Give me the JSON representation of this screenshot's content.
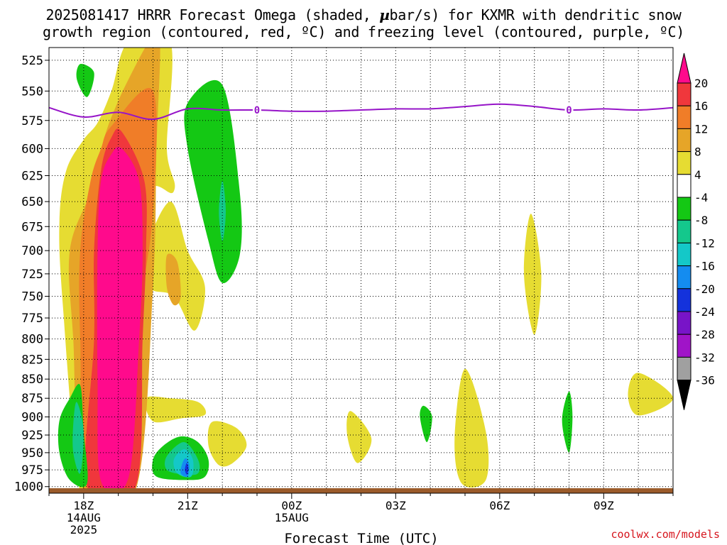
{
  "title": {
    "line1_prefix": "2025081417 HRRR Forecast Omega (shaded, ",
    "line1_mu": "µ",
    "line1_suffix": "bar/s) for KXMR with dendritic snow",
    "line2": "growth region (contoured, red, ºC) and freezing level (contoured, purple, ºC)"
  },
  "credit": "coolwx.com/models",
  "chart_data": {
    "type": "heatmap",
    "xlabel": "Forecast Time (UTC)",
    "ylabel": "",
    "x_range_hours_after_18Z": [
      -1.0,
      17.0
    ],
    "y_range_mb": [
      515,
      1010
    ],
    "y_ticks": [
      525,
      550,
      575,
      600,
      625,
      650,
      675,
      700,
      725,
      750,
      775,
      800,
      825,
      850,
      875,
      900,
      925,
      950,
      975,
      1000
    ],
    "x_ticks": [
      {
        "hour": 0,
        "lines": [
          "18Z",
          "14AUG",
          "2025"
        ]
      },
      {
        "hour": 3,
        "lines": [
          "21Z"
        ]
      },
      {
        "hour": 6,
        "lines": [
          "00Z",
          "15AUG"
        ]
      },
      {
        "hour": 9,
        "lines": [
          "03Z"
        ]
      },
      {
        "hour": 12,
        "lines": [
          "06Z"
        ]
      },
      {
        "hour": 15,
        "lines": [
          "09Z"
        ]
      }
    ],
    "grid": true,
    "colorbar": {
      "placement": "right",
      "levels": [
        "20",
        "16",
        "12",
        "8",
        "4",
        "-4",
        "-8",
        "-12",
        "-16",
        "-20",
        "-24",
        "-28",
        "-32",
        "-36"
      ],
      "colors": [
        "#ff0a8c",
        "#f0373c",
        "#f07d28",
        "#e6a528",
        "#e6dc32",
        "#ffffff",
        "#14c814",
        "#14c88c",
        "#14c8c8",
        "#148cf0",
        "#1432dc",
        "#7814c8",
        "#a014c8",
        "#a0a0a0",
        "#000000"
      ]
    },
    "freezing_level": {
      "color": "#9614c8",
      "label": "0",
      "label_hours": [
        5.0,
        14.0
      ],
      "points": [
        [
          -1.0,
          564
        ],
        [
          0.0,
          572
        ],
        [
          1.0,
          568
        ],
        [
          2.0,
          574
        ],
        [
          3.0,
          565
        ],
        [
          4.0,
          566
        ],
        [
          5.0,
          566
        ],
        [
          6.0,
          567
        ],
        [
          7.0,
          567
        ],
        [
          8.0,
          566
        ],
        [
          9.0,
          565
        ],
        [
          10.0,
          565
        ],
        [
          11.0,
          563
        ],
        [
          12.0,
          561
        ],
        [
          13.0,
          563
        ],
        [
          14.0,
          566
        ],
        [
          15.0,
          565
        ],
        [
          16.0,
          566
        ],
        [
          17.0,
          564
        ]
      ]
    },
    "omega_regions": [
      {
        "color": "#e6dc32",
        "points": [
          [
            3.7,
            907
          ],
          [
            4.4,
            915
          ],
          [
            4.7,
            940
          ],
          [
            4.3,
            965
          ],
          [
            3.9,
            968
          ],
          [
            3.6,
            940
          ]
        ]
      },
      {
        "color": "#e6dc32",
        "points": [
          [
            1.8,
            875
          ],
          [
            2.5,
            875
          ],
          [
            3.3,
            880
          ],
          [
            3.5,
            897
          ],
          [
            2.8,
            902
          ],
          [
            2.0,
            906
          ]
        ]
      },
      {
        "color": "#e6dc32",
        "points": [
          [
            1.8,
            700
          ],
          [
            2.5,
            650
          ],
          [
            3.0,
            700
          ],
          [
            3.5,
            740
          ],
          [
            3.2,
            790
          ],
          [
            2.6,
            750
          ],
          [
            1.9,
            740
          ]
        ]
      },
      {
        "color": "#e6a528",
        "points": [
          [
            2.4,
            705
          ],
          [
            2.7,
            712
          ],
          [
            2.8,
            750
          ],
          [
            2.6,
            760
          ],
          [
            2.4,
            740
          ]
        ]
      },
      {
        "color": "#e6dc32",
        "points": [
          [
            1.3,
            510
          ],
          [
            2.5,
            510
          ],
          [
            2.4,
            600
          ],
          [
            2.6,
            640
          ],
          [
            1.6,
            660
          ],
          [
            0.6,
            1010
          ],
          [
            -0.1,
            1010
          ],
          [
            -0.6,
            760
          ],
          [
            -0.7,
            670
          ],
          [
            -0.5,
            620
          ],
          [
            0.0,
            592
          ],
          [
            0.4,
            577
          ],
          [
            0.8,
            550
          ]
        ]
      },
      {
        "color": "#e6a528",
        "points": [
          [
            1.9,
            510
          ],
          [
            2.2,
            510
          ],
          [
            2.1,
            600
          ],
          [
            2.0,
            740
          ],
          [
            1.5,
            1005
          ],
          [
            0.0,
            1005
          ],
          [
            -0.3,
            800
          ],
          [
            -0.4,
            700
          ],
          [
            0.2,
            640
          ],
          [
            0.6,
            590
          ],
          [
            0.9,
            565
          ],
          [
            1.3,
            540
          ]
        ]
      },
      {
        "color": "#f07d28",
        "points": [
          [
            2.0,
            550
          ],
          [
            2.0,
            660
          ],
          [
            1.6,
            780
          ],
          [
            1.3,
            1000
          ],
          [
            0.1,
            1000
          ],
          [
            -0.1,
            800
          ],
          [
            -0.1,
            700
          ],
          [
            0.2,
            630
          ],
          [
            0.5,
            600
          ],
          [
            0.8,
            580
          ]
        ]
      },
      {
        "color": "#f0373c",
        "points": [
          [
            1.1,
            585
          ],
          [
            1.75,
            630
          ],
          [
            1.8,
            700
          ],
          [
            1.7,
            800
          ],
          [
            1.5,
            1000
          ],
          [
            0.1,
            1000
          ],
          [
            0.3,
            800
          ],
          [
            0.3,
            700
          ],
          [
            0.5,
            620
          ],
          [
            0.8,
            590
          ]
        ]
      },
      {
        "color": "#ff0a8c",
        "points": [
          [
            1.1,
            600
          ],
          [
            1.6,
            630
          ],
          [
            1.7,
            700
          ],
          [
            1.6,
            800
          ],
          [
            1.3,
            985
          ],
          [
            0.5,
            992
          ],
          [
            0.4,
            850
          ],
          [
            0.4,
            700
          ],
          [
            0.5,
            630
          ],
          [
            0.8,
            605
          ]
        ]
      },
      {
        "color": "#14c814",
        "points": [
          [
            -0.1,
            528
          ],
          [
            0.3,
            535
          ],
          [
            0.1,
            555
          ],
          [
            -0.2,
            540
          ]
        ]
      },
      {
        "color": "#14c814",
        "points": [
          [
            -0.1,
            858
          ],
          [
            0.0,
            920
          ],
          [
            0.1,
            995
          ],
          [
            -0.4,
            990
          ],
          [
            -0.7,
            950
          ],
          [
            -0.7,
            905
          ],
          [
            -0.4,
            875
          ]
        ]
      },
      {
        "color": "#14c88c",
        "points": [
          [
            -0.2,
            880
          ],
          [
            0.0,
            920
          ],
          [
            -0.1,
            980
          ],
          [
            -0.3,
            950
          ],
          [
            -0.3,
            910
          ]
        ]
      },
      {
        "color": "#14c814",
        "points": [
          [
            3.0,
            560
          ],
          [
            4.0,
            545
          ],
          [
            4.5,
            640
          ],
          [
            4.5,
            705
          ],
          [
            4.0,
            735
          ],
          [
            3.6,
            690
          ],
          [
            3.0,
            600
          ]
        ]
      },
      {
        "color": "#14c88c",
        "points": [
          [
            4.0,
            630
          ],
          [
            4.1,
            660
          ],
          [
            4.0,
            690
          ],
          [
            3.9,
            660
          ]
        ]
      },
      {
        "color": "#14c814",
        "points": [
          [
            2.8,
            927
          ],
          [
            3.3,
            935
          ],
          [
            3.6,
            960
          ],
          [
            3.5,
            985
          ],
          [
            3.0,
            990
          ],
          [
            2.1,
            985
          ],
          [
            2.0,
            960
          ],
          [
            2.3,
            940
          ]
        ]
      },
      {
        "color": "#14c88c",
        "points": [
          [
            2.9,
            935
          ],
          [
            3.3,
            960
          ],
          [
            3.3,
            980
          ],
          [
            2.9,
            982
          ],
          [
            2.4,
            975
          ],
          [
            2.4,
            955
          ]
        ]
      },
      {
        "color": "#14c8c8",
        "points": [
          [
            2.9,
            945
          ],
          [
            3.15,
            960
          ],
          [
            3.1,
            985
          ],
          [
            2.7,
            980
          ],
          [
            2.6,
            960
          ]
        ]
      },
      {
        "color": "#148cf0",
        "points": [
          [
            2.95,
            958
          ],
          [
            3.05,
            968
          ],
          [
            3.0,
            985
          ],
          [
            2.8,
            980
          ],
          [
            2.85,
            965
          ]
        ]
      },
      {
        "color": "#1432dc",
        "points": [
          [
            2.97,
            965
          ],
          [
            3.02,
            972
          ],
          [
            2.98,
            982
          ],
          [
            2.92,
            975
          ]
        ]
      },
      {
        "color": "#e6dc32",
        "points": [
          [
            7.7,
            892
          ],
          [
            8.3,
            930
          ],
          [
            7.9,
            965
          ],
          [
            7.6,
            925
          ]
        ]
      },
      {
        "color": "#14c814",
        "points": [
          [
            9.8,
            885
          ],
          [
            10.05,
            900
          ],
          [
            9.9,
            935
          ],
          [
            9.7,
            900
          ]
        ]
      },
      {
        "color": "#e6dc32",
        "points": [
          [
            11.0,
            837
          ],
          [
            11.6,
            920
          ],
          [
            11.6,
            990
          ],
          [
            10.9,
            995
          ],
          [
            10.7,
            930
          ]
        ]
      },
      {
        "color": "#e6dc32",
        "points": [
          [
            12.9,
            662
          ],
          [
            13.2,
            725
          ],
          [
            13.0,
            795
          ],
          [
            12.7,
            725
          ]
        ]
      },
      {
        "color": "#14c814",
        "points": [
          [
            14.0,
            866
          ],
          [
            14.1,
            900
          ],
          [
            14.0,
            950
          ],
          [
            13.8,
            905
          ]
        ]
      },
      {
        "color": "#e6dc32",
        "points": [
          [
            16.0,
            842
          ],
          [
            17.0,
            875
          ],
          [
            16.0,
            898
          ],
          [
            15.7,
            870
          ]
        ]
      }
    ]
  }
}
